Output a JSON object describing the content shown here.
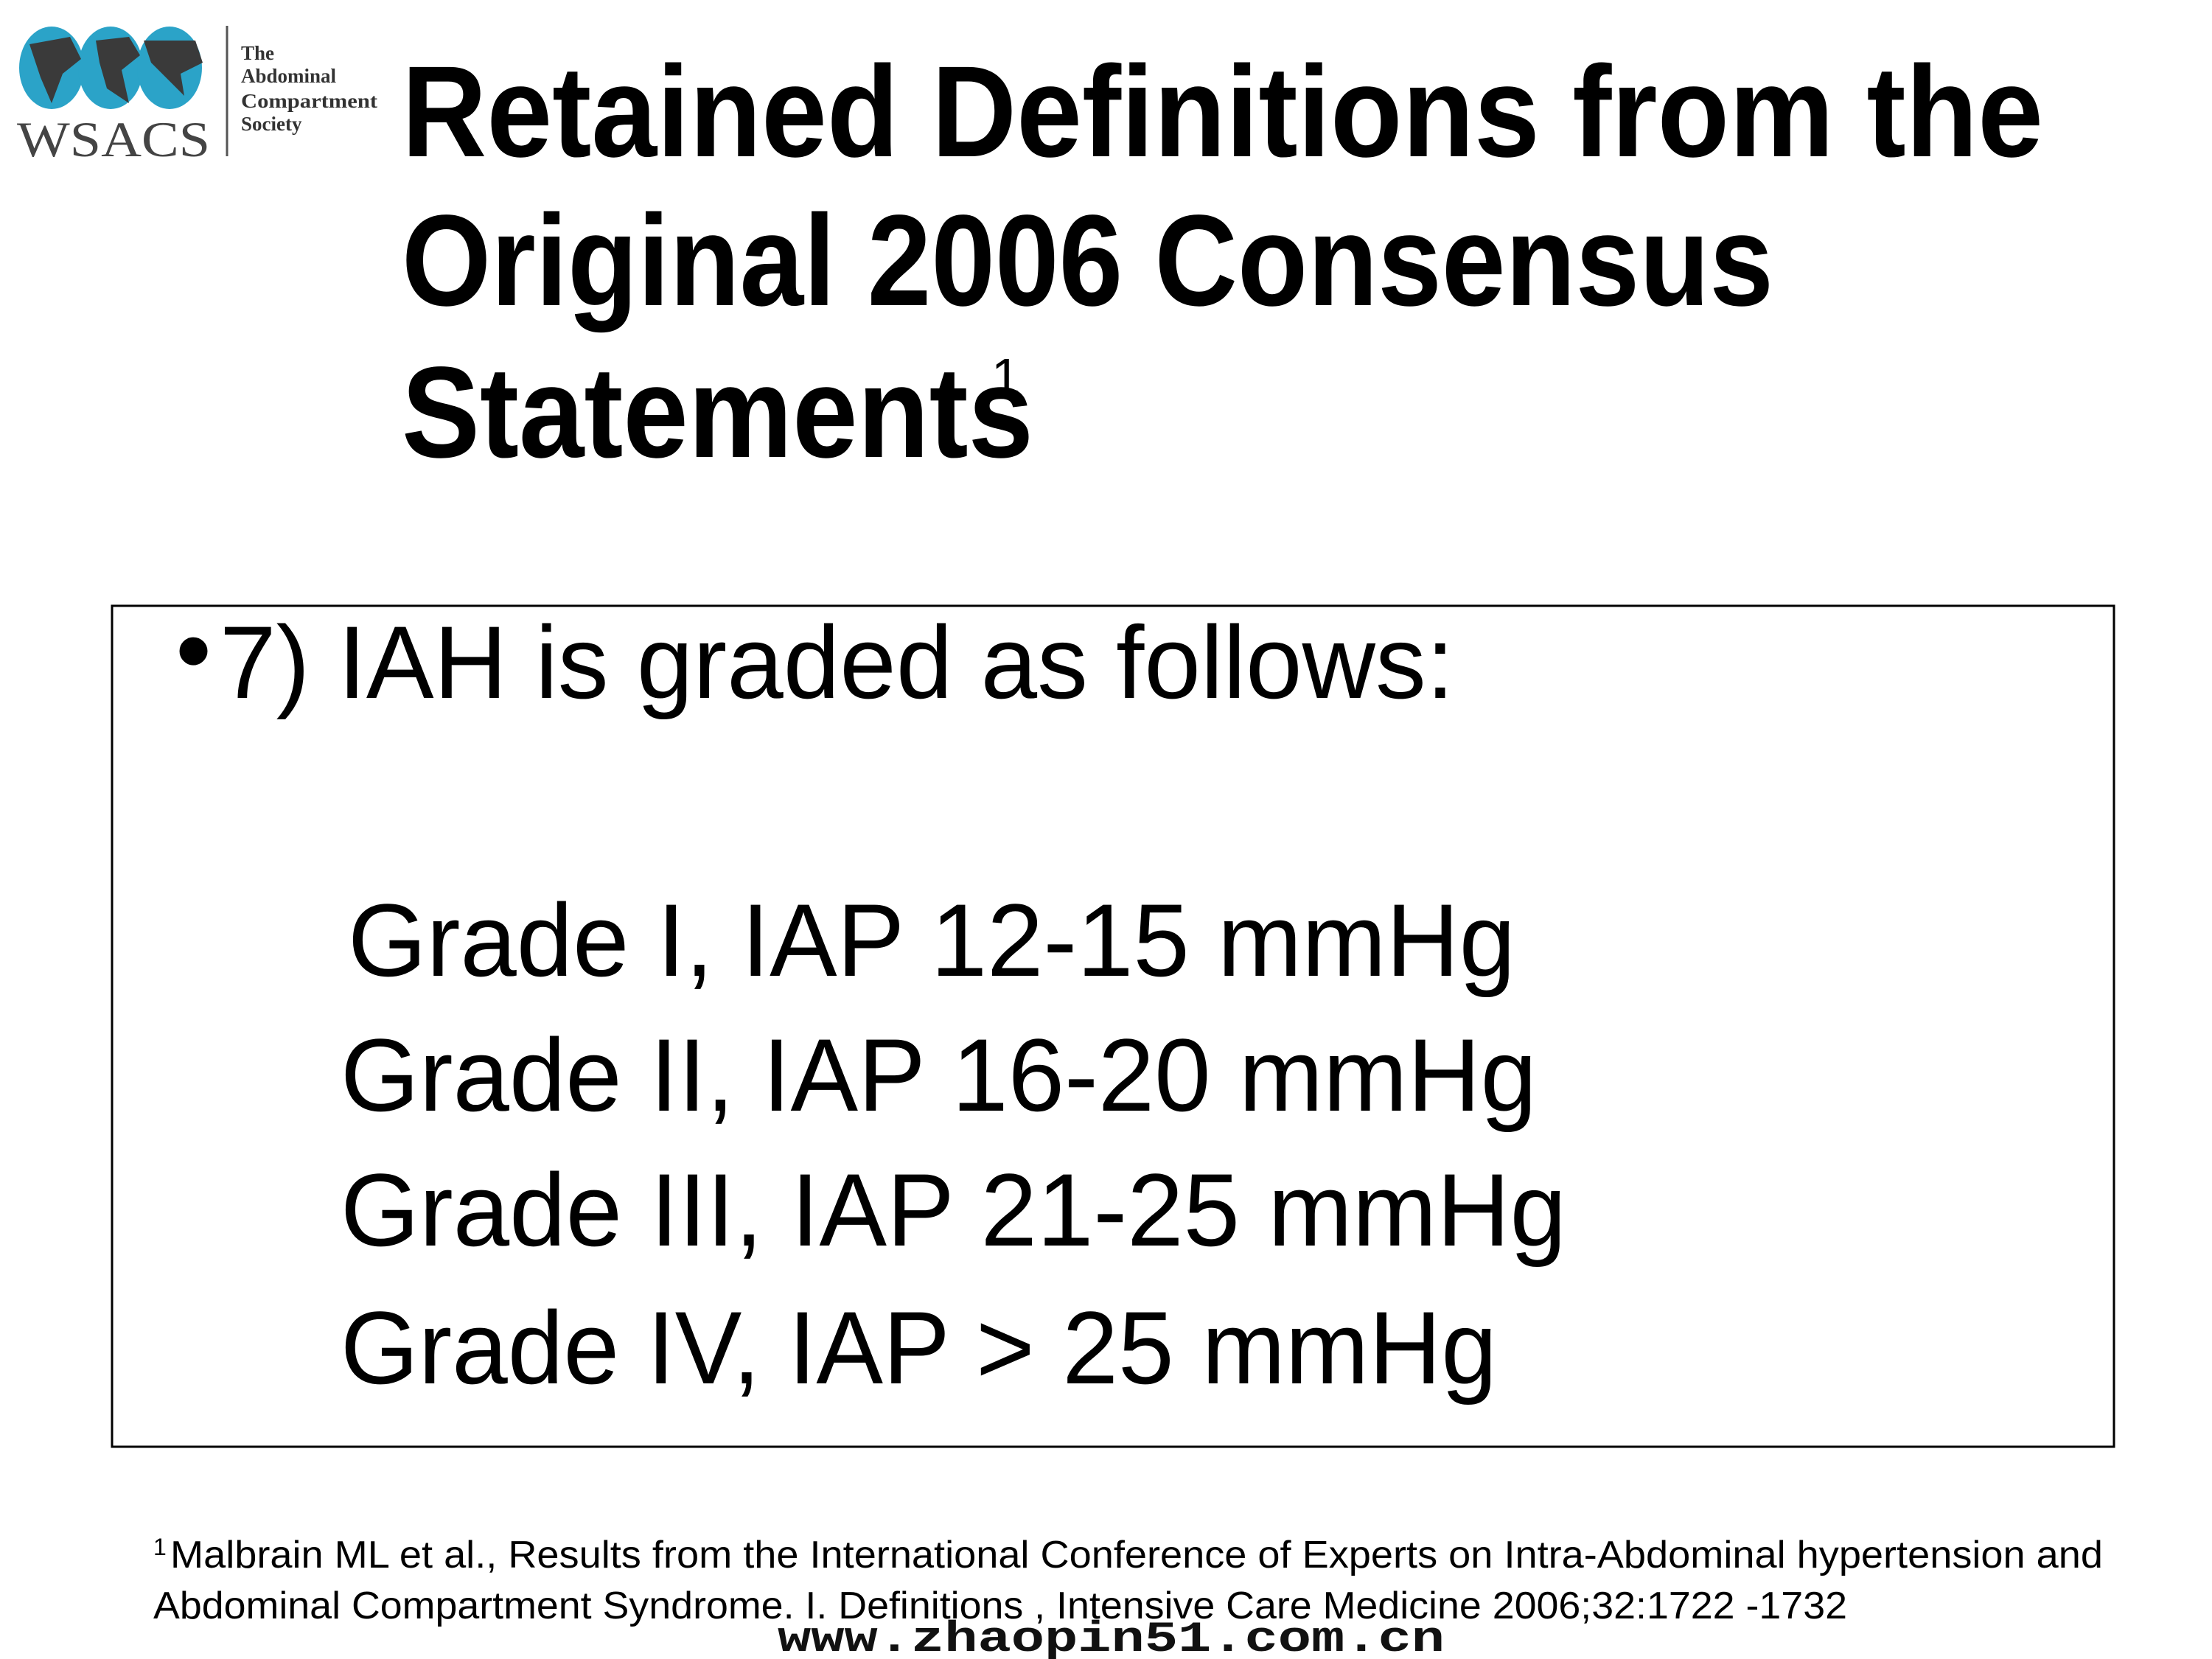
{
  "header": {
    "logo": {
      "abbr": "WSACS",
      "lines": [
        "The",
        "Abdominal",
        "Compartment",
        "Society"
      ]
    },
    "title_lines": [
      "Retained Definitions from the",
      "Original 2006 Consensus",
      "Statements"
    ],
    "title_superscript": "1"
  },
  "content": {
    "bullet": "7) IAH is graded as follows:",
    "grades": [
      "Grade I, IAP 12-15 mmHg",
      "Grade II, IAP 16-20 mmHg",
      "Grade III, IAP 21-25 mmHg",
      "Grade IV, IAP > 25 mmHg"
    ]
  },
  "footnote": {
    "superscript": "1",
    "lines": [
      "Malbrain ML et al., Results from the International Conference of Experts on Intra-Abdominal hypertension and",
      "Abdominal Compartment Syndrome. I. Definitions , Intensive Care Medicine 2006;32:1722 -1732"
    ]
  },
  "watermark": "www.zhaopin51.com.cn"
}
